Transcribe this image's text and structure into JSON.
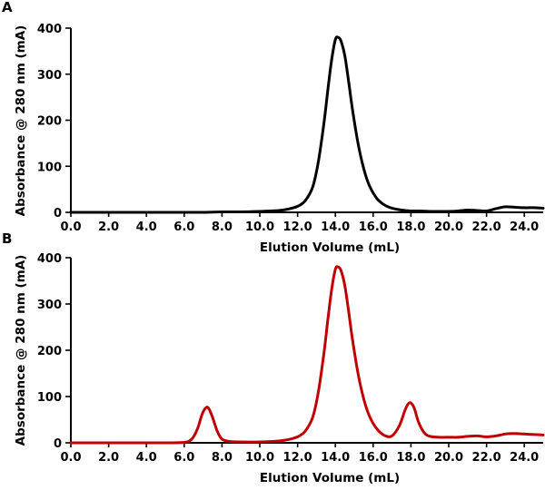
{
  "chart_data": [
    {
      "type": "line",
      "panel_label": "A",
      "xlabel": "Elution Volume (mL)",
      "ylabel": "Absorbance @ 280 nm (mA)",
      "xlim": [
        0,
        25
      ],
      "ylim": [
        0,
        400
      ],
      "xticks": [
        "0.0",
        "2.0",
        "4.0",
        "6.0",
        "8.0",
        "10.0",
        "12.0",
        "14.0",
        "16.0",
        "18.0",
        "20.0",
        "22.0",
        "24.0"
      ],
      "yticks": [
        "0",
        "100",
        "200",
        "300",
        "400"
      ],
      "grid": false,
      "legend": "none",
      "series": [
        {
          "color": "#000000",
          "x": [
            0,
            1,
            2,
            3,
            4,
            5,
            6,
            7,
            8,
            9,
            10,
            10.5,
            11,
            11.5,
            12,
            12.4,
            12.8,
            13.1,
            13.4,
            13.6,
            13.8,
            14.0,
            14.15,
            14.3,
            14.5,
            14.7,
            14.9,
            15.2,
            15.5,
            15.8,
            16.2,
            16.6,
            17.0,
            17.5,
            18,
            18.5,
            19,
            19.5,
            20,
            20.5,
            21,
            21.5,
            22,
            22.5,
            23,
            23.5,
            24,
            24.5,
            25
          ],
          "y": [
            0,
            0,
            0,
            0,
            0,
            0,
            0,
            0,
            1,
            1,
            2,
            3,
            4,
            7,
            13,
            25,
            55,
            110,
            195,
            265,
            330,
            375,
            380,
            372,
            340,
            285,
            225,
            150,
            95,
            58,
            30,
            16,
            9,
            5,
            3,
            3,
            2,
            2,
            2,
            3,
            5,
            4,
            3,
            8,
            12,
            11,
            10,
            10,
            9
          ]
        }
      ]
    },
    {
      "type": "line",
      "panel_label": "B",
      "xlabel": "Elution Volume (mL)",
      "ylabel": "Absorbance @ 280 nm (mA)",
      "xlim": [
        0,
        25
      ],
      "ylim": [
        0,
        400
      ],
      "xticks": [
        "0.0",
        "2.0",
        "4.0",
        "6.0",
        "8.0",
        "10.0",
        "12.0",
        "14.0",
        "16.0",
        "18.0",
        "20.0",
        "22.0",
        "24.0"
      ],
      "yticks": [
        "0",
        "100",
        "200",
        "300",
        "400"
      ],
      "grid": false,
      "legend": "none",
      "series": [
        {
          "color": "#c00000",
          "x": [
            0,
            1,
            2,
            3,
            4,
            5,
            6,
            6.4,
            6.7,
            6.95,
            7.15,
            7.3,
            7.5,
            7.75,
            8.0,
            8.4,
            9,
            10,
            11,
            11.5,
            12,
            12.4,
            12.8,
            13.1,
            13.4,
            13.6,
            13.8,
            14.0,
            14.15,
            14.3,
            14.5,
            14.7,
            14.9,
            15.2,
            15.5,
            15.8,
            16.2,
            16.6,
            17.0,
            17.4,
            17.7,
            17.9,
            18.05,
            18.2,
            18.4,
            18.7,
            19,
            19.5,
            20,
            20.5,
            21,
            21.5,
            22,
            22.5,
            23,
            23.5,
            24,
            24.5,
            25
          ],
          "y": [
            0,
            0,
            0,
            0,
            0,
            0,
            1,
            8,
            30,
            62,
            76,
            74,
            55,
            25,
            8,
            3,
            2,
            2,
            4,
            7,
            13,
            25,
            55,
            110,
            195,
            265,
            330,
            375,
            380,
            372,
            340,
            285,
            225,
            150,
            95,
            58,
            30,
            16,
            15,
            38,
            72,
            86,
            84,
            72,
            45,
            22,
            14,
            12,
            12,
            12,
            14,
            15,
            13,
            15,
            19,
            20,
            19,
            18,
            17
          ]
        }
      ]
    }
  ]
}
